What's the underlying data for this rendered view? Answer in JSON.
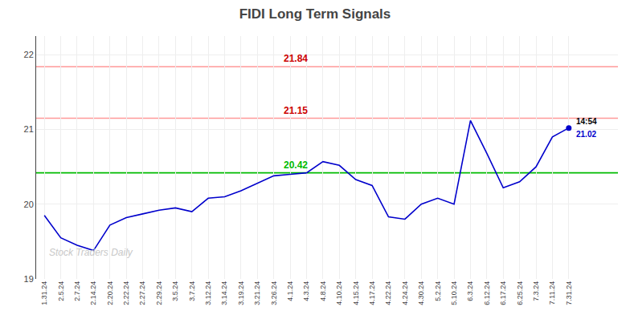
{
  "chart_data": {
    "type": "line",
    "title": "FIDI Long Term Signals",
    "categories": [
      "1.31.24",
      "2.5.24",
      "2.7.24",
      "2.14.24",
      "2.20.24",
      "2.22.24",
      "2.27.24",
      "2.29.24",
      "3.5.24",
      "3.7.24",
      "3.12.24",
      "3.14.24",
      "3.19.24",
      "3.21.24",
      "3.26.24",
      "4.1.24",
      "4.3.24",
      "4.8.24",
      "4.10.24",
      "4.15.24",
      "4.17.24",
      "4.22.24",
      "4.24.24",
      "4.30.24",
      "5.2.24",
      "5.10.24",
      "6.3.24",
      "6.12.24",
      "6.17.24",
      "6.25.24",
      "7.3.24",
      "7.11.24",
      "7.31.24"
    ],
    "values": [
      19.85,
      19.55,
      19.45,
      19.38,
      19.72,
      19.82,
      19.87,
      19.92,
      19.95,
      19.9,
      20.08,
      20.1,
      20.18,
      20.28,
      20.38,
      20.4,
      20.42,
      20.57,
      20.52,
      20.33,
      20.25,
      19.83,
      19.8,
      20.0,
      20.08,
      20.0,
      21.12,
      20.68,
      20.22,
      20.3,
      20.5,
      20.9,
      21.02
    ],
    "color": "#0000CC",
    "ylim": [
      19.0,
      22.25
    ],
    "yticks": [
      19,
      20,
      21,
      22
    ],
    "grid": true,
    "hlines": [
      {
        "value": 21.84,
        "label": "21.84",
        "color": "#FF9999",
        "label_color": "#CC0000"
      },
      {
        "value": 21.15,
        "label": "21.15",
        "color": "#FF9999",
        "label_color": "#CC0000"
      },
      {
        "value": 20.42,
        "label": "20.42",
        "color": "#00BB00",
        "label_color": "#00BB00"
      }
    ],
    "last_point_labels": [
      {
        "text": "14:54",
        "color": "#000000"
      },
      {
        "text": "21.02",
        "color": "#0000CC"
      }
    ],
    "watermark": "Stock Traders Daily"
  }
}
